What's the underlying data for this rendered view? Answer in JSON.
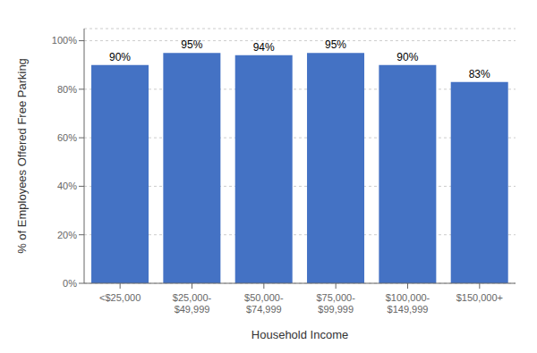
{
  "chart_data": {
    "type": "bar",
    "categories": [
      "<$25,000",
      "$25,000-\n$49,999",
      "$50,000-\n$74,999",
      "$75,000-\n$99,999",
      "$100,000-\n$149,999",
      "$150,000+"
    ],
    "values": [
      90,
      95,
      94,
      95,
      90,
      83
    ],
    "value_labels": [
      "90%",
      "95%",
      "94%",
      "95%",
      "90%",
      "83%"
    ],
    "data_labels": true,
    "color": "#4472C4",
    "xlabel": "Household Income",
    "ylabel": "% of Employees Offered Free Parking",
    "ylim": [
      0,
      105
    ],
    "yticks": [
      {
        "value": 0,
        "label": "0%"
      },
      {
        "value": 20,
        "label": "20%"
      },
      {
        "value": 40,
        "label": "40%"
      },
      {
        "value": 60,
        "label": "60%"
      },
      {
        "value": 80,
        "label": "80%"
      },
      {
        "value": 100,
        "label": "100%"
      }
    ],
    "grid": true
  }
}
